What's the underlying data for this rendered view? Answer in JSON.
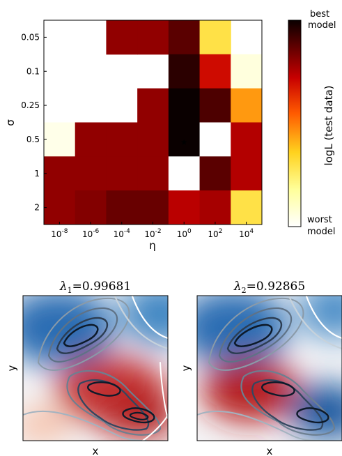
{
  "chart_data": [
    {
      "type": "heatmap",
      "title": "",
      "xlabel": "η",
      "ylabel": "σ",
      "x_categories": [
        {
          "base": "10",
          "exp": "-8"
        },
        {
          "base": "10",
          "exp": "-6"
        },
        {
          "base": "10",
          "exp": "-4"
        },
        {
          "base": "10",
          "exp": "-2"
        },
        {
          "base": "10",
          "exp": "0"
        },
        {
          "base": "10",
          "exp": "2"
        },
        {
          "base": "10",
          "exp": "4"
        }
      ],
      "y_categories": [
        "0.05",
        "0.1",
        "0.25",
        "0.5",
        "1",
        "2"
      ],
      "values": [
        [
          null,
          null,
          0.8,
          0.8,
          0.88,
          0.3,
          null
        ],
        [
          null,
          null,
          null,
          null,
          0.95,
          0.7,
          0.06
        ],
        [
          null,
          null,
          null,
          0.8,
          1.0,
          0.9,
          0.45
        ],
        [
          0.04,
          0.8,
          0.8,
          0.8,
          1.0,
          0.0,
          0.75
        ],
        [
          0.8,
          0.8,
          0.8,
          0.8,
          0.0,
          0.88,
          0.75
        ],
        [
          0.8,
          0.82,
          0.86,
          0.86,
          0.74,
          0.77,
          0.3
        ]
      ],
      "value_meaning": "normalized logL (test data), 0 = worst model, 1 = best model",
      "marker": {
        "symbol": "★",
        "color": "#ffffff",
        "x_index": 4,
        "y_index": 3
      },
      "colorbar": {
        "label": "logL (test data)",
        "top_label": [
          "best",
          "model"
        ],
        "bottom_label": [
          "worst",
          "model"
        ],
        "colormap": "hot"
      }
    },
    {
      "type": "heatmap",
      "title_symbol": "λ",
      "title_subscript": "1",
      "title_value": "=0.99681",
      "xlabel": "x",
      "ylabel": "y",
      "colormap": "RdBu",
      "description_fields": {
        "red_blobs": [
          [
            0.4,
            0.4,
            0.2
          ],
          [
            0.62,
            0.25,
            0.22
          ]
        ],
        "blue_blobs": [
          [
            0.22,
            0.86,
            0.26
          ]
        ]
      }
    },
    {
      "type": "heatmap",
      "title_symbol": "λ",
      "title_subscript": "2",
      "title_value": "=0.92865",
      "xlabel": "x",
      "ylabel": "y",
      "colormap": "RdBu",
      "description_fields": {
        "red_blobs": [
          [
            0.33,
            0.38,
            0.22
          ]
        ],
        "blue_blobs": [
          [
            0.9,
            0.28,
            0.2
          ],
          [
            0.22,
            0.86,
            0.24
          ]
        ]
      }
    }
  ],
  "colors": {
    "white_cell": "#ffffff",
    "contour_dark": "#0d1a2a",
    "contour_light": "#ffffff"
  }
}
